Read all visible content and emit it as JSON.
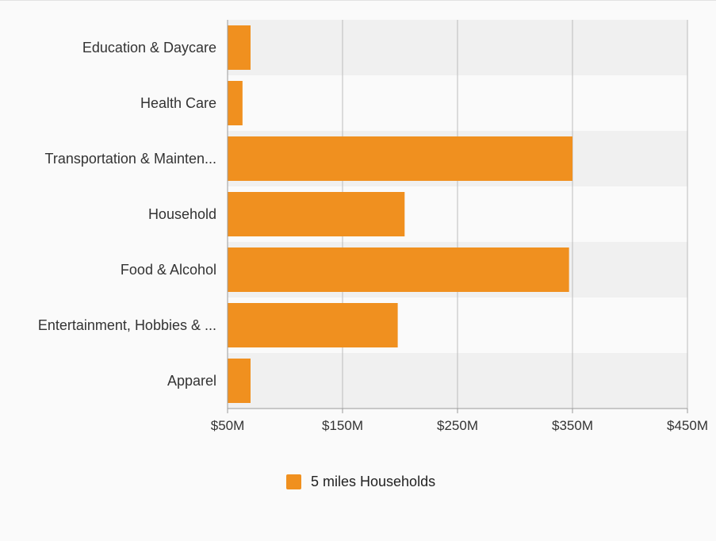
{
  "chart_data": {
    "type": "bar",
    "orientation": "horizontal",
    "title": "",
    "xlabel": "",
    "ylabel": "",
    "categories": [
      "Education & Daycare",
      "Health Care",
      "Transportation & Mainten...",
      "Household",
      "Food & Alcohol",
      "Entertainment, Hobbies & ...",
      "Apparel"
    ],
    "series": [
      {
        "name": "5 miles Households",
        "color": "#f0901f",
        "values": [
          70,
          63,
          350,
          204,
          347,
          198,
          70
        ]
      }
    ],
    "xlim": [
      50,
      450
    ],
    "xticks": [
      50,
      150,
      250,
      350,
      450
    ],
    "xtick_labels": [
      "$50M",
      "$150M",
      "$250M",
      "$350M",
      "$450M"
    ],
    "grid": true,
    "band_colors": [
      "#f0f0f0",
      "#fafafa"
    ],
    "legend_position": "bottom-center"
  }
}
